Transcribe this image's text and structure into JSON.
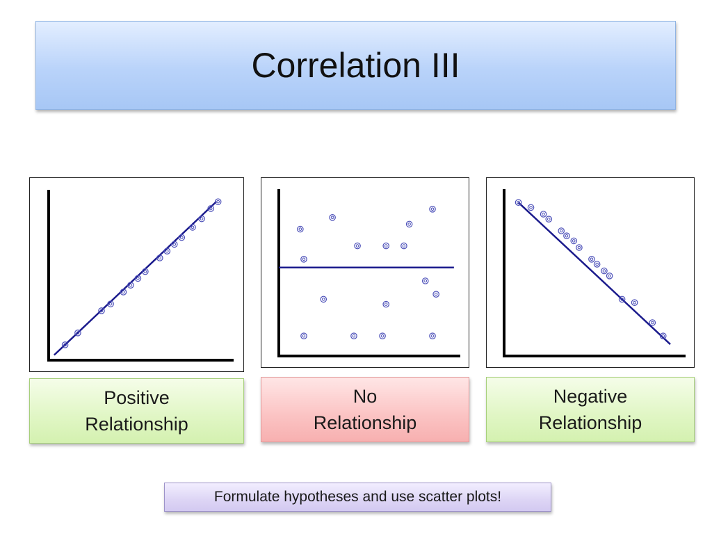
{
  "title": "Correlation III",
  "footer": "Formulate hypotheses and use scatter plots!",
  "colors": {
    "marker": "#4b4fb8",
    "trend_line": "#1a1a8c",
    "axis": "#000000"
  },
  "chart_data": [
    {
      "type": "scatter",
      "label": "Positive Relationship",
      "xlim": [
        0,
        10
      ],
      "ylim": [
        0,
        10
      ],
      "x": [
        0.9,
        1.6,
        2.9,
        3.4,
        4.1,
        4.5,
        4.9,
        5.3,
        6.1,
        6.5,
        6.9,
        7.3,
        7.9,
        8.4,
        8.9,
        9.3
      ],
      "y": [
        0.9,
        1.6,
        2.9,
        3.3,
        4.0,
        4.4,
        4.8,
        5.2,
        6.0,
        6.4,
        6.8,
        7.2,
        7.8,
        8.3,
        8.9,
        9.3
      ],
      "trend": {
        "x": [
          0.3,
          9.2
        ],
        "y": [
          0.3,
          9.3
        ]
      }
    },
    {
      "type": "scatter",
      "label": "No Relationship",
      "xlim": [
        0,
        10
      ],
      "ylim": [
        0,
        10
      ],
      "x": [
        1.2,
        1.4,
        2.5,
        1.4,
        3.0,
        4.4,
        6.0,
        7.0,
        8.2,
        7.3,
        5.8,
        8.6,
        6.0,
        4.2,
        8.8,
        8.6
      ],
      "y": [
        7.6,
        5.8,
        3.4,
        1.2,
        8.3,
        6.6,
        3.1,
        6.6,
        4.5,
        7.9,
        1.2,
        8.8,
        6.6,
        1.2,
        3.7,
        1.2
      ],
      "trend": {
        "x": [
          0.0,
          9.8
        ],
        "y": [
          5.3,
          5.3
        ]
      }
    },
    {
      "type": "scatter",
      "label": "Negative Relationship",
      "xlim": [
        0,
        10
      ],
      "ylim": [
        0,
        10
      ],
      "x": [
        0.8,
        1.5,
        2.2,
        2.5,
        3.2,
        3.5,
        3.9,
        4.2,
        4.9,
        5.2,
        5.6,
        5.9,
        6.6,
        7.3,
        8.3,
        8.9
      ],
      "y": [
        9.2,
        8.9,
        8.5,
        8.2,
        7.5,
        7.2,
        6.9,
        6.5,
        5.8,
        5.5,
        5.1,
        4.8,
        3.4,
        3.2,
        2.0,
        1.2
      ],
      "trend": {
        "x": [
          0.8,
          9.3
        ],
        "y": [
          9.2,
          0.7
        ]
      }
    }
  ]
}
